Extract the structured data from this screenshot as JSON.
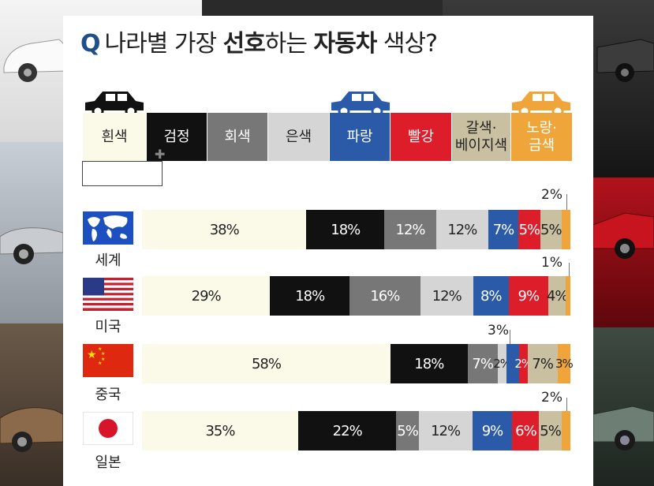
{
  "title": {
    "q": "Q",
    "part1": "나라별 가장 ",
    "bold1": "선호",
    "part2": "하는 ",
    "bold2": "자동차",
    "part3": " 색상?"
  },
  "colors": {
    "흰색": "#fbf9e8",
    "검정": "#111111",
    "회색": "#777777",
    "은색": "#d5d5d5",
    "파랑": "#2b5ba8",
    "빨강": "#dd1d2a",
    "갈색·베이지색": "#c9c0a1",
    "노랑·금색": "#efa53a"
  },
  "legend": [
    {
      "label": "흰색",
      "text_color": "#222222"
    },
    {
      "label": "검정",
      "text_color": "#ffffff"
    },
    {
      "label": "회색",
      "text_color": "#ffffff"
    },
    {
      "label": "은색",
      "text_color": "#222222"
    },
    {
      "label": "파랑",
      "text_color": "#ffffff"
    },
    {
      "label": "빨강",
      "text_color": "#ffffff"
    },
    {
      "label": "갈색·\n베이지색",
      "text_color": "#222222"
    },
    {
      "label": "노랑·\n금색",
      "text_color": "#ffffff"
    }
  ],
  "chart_data": {
    "type": "bar",
    "stacked": true,
    "orientation": "horizontal",
    "title": "나라별 가장 선호하는 자동차 색상?",
    "categories": [
      "세계",
      "미국",
      "중국",
      "일본"
    ],
    "series": [
      {
        "name": "흰색",
        "values": [
          38,
          29,
          58,
          35
        ],
        "labels": [
          "38%",
          "29%",
          "58%",
          "35%"
        ]
      },
      {
        "name": "검정",
        "values": [
          18,
          18,
          18,
          22
        ],
        "labels": [
          "18%",
          "18%",
          "18%",
          "22%"
        ]
      },
      {
        "name": "회색",
        "values": [
          12,
          16,
          7,
          5
        ],
        "labels": [
          "12%",
          "16%",
          "7%",
          "5%"
        ]
      },
      {
        "name": "은색",
        "values": [
          12,
          12,
          2,
          12
        ],
        "labels": [
          "12%",
          "12%",
          "2%",
          "12%"
        ]
      },
      {
        "name": "파랑",
        "values": [
          7,
          8,
          3,
          9
        ],
        "labels": [
          "7%",
          "8%",
          "",
          "9%"
        ]
      },
      {
        "name": "빨강",
        "values": [
          5,
          9,
          2,
          6
        ],
        "labels": [
          "5%",
          "9%",
          "2%",
          "6%"
        ]
      },
      {
        "name": "갈색·베이지색",
        "values": [
          5,
          4,
          7,
          5
        ],
        "labels": [
          "5%",
          "4%",
          "7%",
          "5%"
        ]
      },
      {
        "name": "노랑·금색",
        "values": [
          2,
          1,
          3,
          2
        ],
        "labels": [
          "",
          "",
          "3%",
          ""
        ]
      }
    ],
    "callouts": [
      {
        "text": "2%",
        "row": 0
      },
      {
        "text": "1%",
        "row": 1
      },
      {
        "text": "3%",
        "row": 2
      },
      {
        "text": "2%",
        "row": 3
      }
    ]
  }
}
